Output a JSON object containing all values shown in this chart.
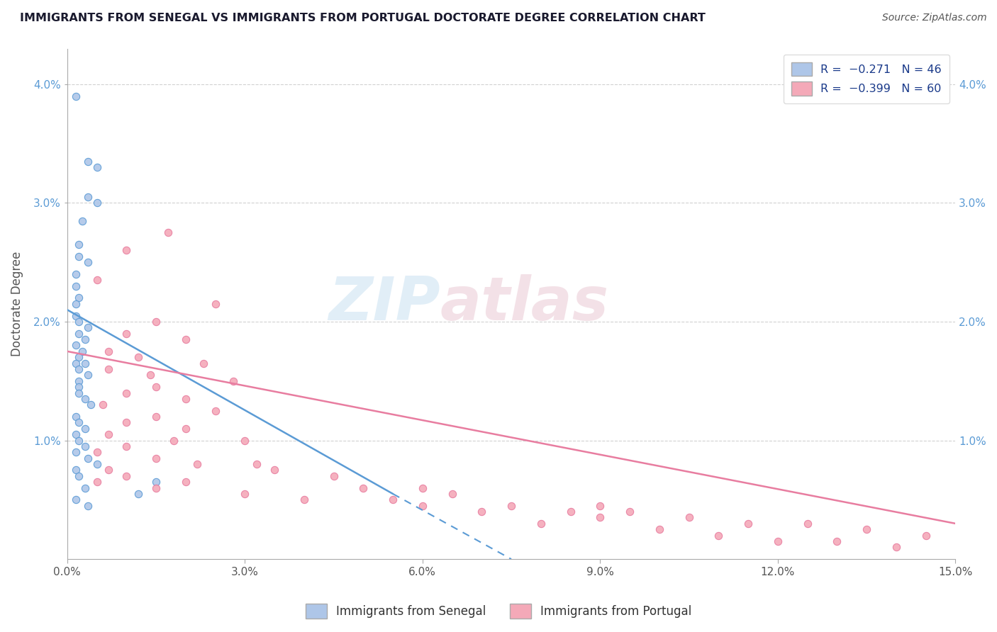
{
  "title": "IMMIGRANTS FROM SENEGAL VS IMMIGRANTS FROM PORTUGAL DOCTORATE DEGREE CORRELATION CHART",
  "source_text": "Source: ZipAtlas.com",
  "ylabel": "Doctorate Degree",
  "xlim": [
    0.0,
    15.0
  ],
  "ylim": [
    0.0,
    4.3
  ],
  "yticks": [
    1.0,
    2.0,
    3.0,
    4.0
  ],
  "ytick_labels_left": [
    "1.0%",
    "2.0%",
    "3.0%",
    "4.0%"
  ],
  "ytick_labels_right": [
    "1.0%",
    "2.0%",
    "3.0%",
    "4.0%"
  ],
  "xticks": [
    0.0,
    3.0,
    6.0,
    9.0,
    12.0,
    15.0
  ],
  "xtick_labels": [
    "0.0%",
    "3.0%",
    "6.0%",
    "9.0%",
    "12.0%",
    "15.0%"
  ],
  "color_senegal": "#aec6e8",
  "color_portugal": "#f4a9b8",
  "color_line_senegal": "#5b9bd5",
  "color_line_portugal": "#e87da0",
  "color_title": "#1a1a2e",
  "color_source": "#555555",
  "watermark_text": "ZIP atlas",
  "senegal_points": [
    [
      0.15,
      3.9
    ],
    [
      0.35,
      3.35
    ],
    [
      0.5,
      3.3
    ],
    [
      0.35,
      3.05
    ],
    [
      0.5,
      3.0
    ],
    [
      0.25,
      2.85
    ],
    [
      0.2,
      2.65
    ],
    [
      0.2,
      2.55
    ],
    [
      0.35,
      2.5
    ],
    [
      0.15,
      2.4
    ],
    [
      0.15,
      2.3
    ],
    [
      0.2,
      2.2
    ],
    [
      0.15,
      2.15
    ],
    [
      0.15,
      2.05
    ],
    [
      0.2,
      2.0
    ],
    [
      0.35,
      1.95
    ],
    [
      0.2,
      1.9
    ],
    [
      0.3,
      1.85
    ],
    [
      0.15,
      1.8
    ],
    [
      0.25,
      1.75
    ],
    [
      0.2,
      1.7
    ],
    [
      0.3,
      1.65
    ],
    [
      0.15,
      1.65
    ],
    [
      0.2,
      1.6
    ],
    [
      0.35,
      1.55
    ],
    [
      0.2,
      1.5
    ],
    [
      0.2,
      1.45
    ],
    [
      0.2,
      1.4
    ],
    [
      0.3,
      1.35
    ],
    [
      0.4,
      1.3
    ],
    [
      0.15,
      1.2
    ],
    [
      0.2,
      1.15
    ],
    [
      0.3,
      1.1
    ],
    [
      0.15,
      1.05
    ],
    [
      0.2,
      1.0
    ],
    [
      0.3,
      0.95
    ],
    [
      0.15,
      0.9
    ],
    [
      0.35,
      0.85
    ],
    [
      0.5,
      0.8
    ],
    [
      0.15,
      0.75
    ],
    [
      0.2,
      0.7
    ],
    [
      1.5,
      0.65
    ],
    [
      0.3,
      0.6
    ],
    [
      1.2,
      0.55
    ],
    [
      0.15,
      0.5
    ],
    [
      0.35,
      0.45
    ]
  ],
  "portugal_points": [
    [
      1.7,
      2.75
    ],
    [
      1.0,
      2.6
    ],
    [
      0.5,
      2.35
    ],
    [
      2.5,
      2.15
    ],
    [
      1.5,
      2.0
    ],
    [
      1.0,
      1.9
    ],
    [
      2.0,
      1.85
    ],
    [
      0.7,
      1.75
    ],
    [
      1.2,
      1.7
    ],
    [
      2.3,
      1.65
    ],
    [
      0.7,
      1.6
    ],
    [
      1.4,
      1.55
    ],
    [
      2.8,
      1.5
    ],
    [
      1.5,
      1.45
    ],
    [
      1.0,
      1.4
    ],
    [
      2.0,
      1.35
    ],
    [
      0.6,
      1.3
    ],
    [
      2.5,
      1.25
    ],
    [
      1.5,
      1.2
    ],
    [
      1.0,
      1.15
    ],
    [
      2.0,
      1.1
    ],
    [
      0.7,
      1.05
    ],
    [
      3.0,
      1.0
    ],
    [
      1.0,
      0.95
    ],
    [
      0.5,
      0.9
    ],
    [
      1.5,
      0.85
    ],
    [
      2.2,
      0.8
    ],
    [
      0.7,
      0.75
    ],
    [
      3.5,
      0.75
    ],
    [
      1.0,
      0.7
    ],
    [
      4.5,
      0.7
    ],
    [
      2.0,
      0.65
    ],
    [
      0.5,
      0.65
    ],
    [
      1.5,
      0.6
    ],
    [
      5.0,
      0.6
    ],
    [
      3.0,
      0.55
    ],
    [
      6.5,
      0.55
    ],
    [
      4.0,
      0.5
    ],
    [
      5.5,
      0.5
    ],
    [
      7.5,
      0.45
    ],
    [
      6.0,
      0.45
    ],
    [
      8.5,
      0.4
    ],
    [
      9.5,
      0.4
    ],
    [
      7.0,
      0.4
    ],
    [
      9.0,
      0.35
    ],
    [
      10.5,
      0.35
    ],
    [
      11.5,
      0.3
    ],
    [
      12.5,
      0.3
    ],
    [
      8.0,
      0.3
    ],
    [
      13.5,
      0.25
    ],
    [
      10.0,
      0.25
    ],
    [
      14.5,
      0.2
    ],
    [
      11.0,
      0.2
    ],
    [
      12.0,
      0.15
    ],
    [
      13.0,
      0.15
    ],
    [
      14.0,
      0.1
    ],
    [
      1.8,
      1.0
    ],
    [
      3.2,
      0.8
    ],
    [
      6.0,
      0.6
    ],
    [
      9.0,
      0.45
    ]
  ],
  "trendline_senegal_solid": {
    "x_start": 0.0,
    "y_start": 2.1,
    "x_end": 5.5,
    "y_end": 0.55
  },
  "trendline_senegal_dashed": {
    "x_start": 5.5,
    "y_start": 0.55,
    "x_end": 7.5,
    "y_end": 0.0
  },
  "trendline_portugal": {
    "x_start": 0.0,
    "y_start": 1.75,
    "x_end": 15.0,
    "y_end": 0.3
  },
  "grid_color": "#cccccc",
  "background_color": "#ffffff"
}
